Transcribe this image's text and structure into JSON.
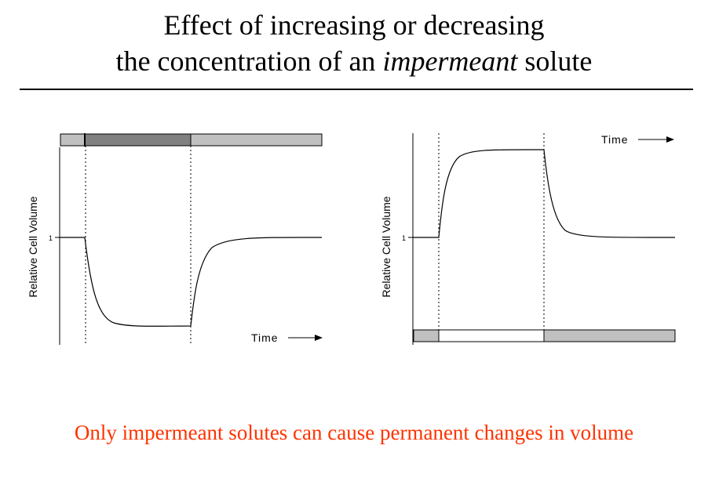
{
  "title": {
    "line1": "Effect of increasing or decreasing",
    "line2_prefix": "the concentration of an ",
    "line2_italic": "impermeant",
    "line2_suffix": " solute"
  },
  "left_plot": {
    "ylabel": "Relative Cell Volume",
    "y_tick": "1",
    "time_label": "Time",
    "bar_colors": [
      "#c0c0c0",
      "#808080",
      "#c0c0c0"
    ]
  },
  "right_plot": {
    "ylabel": "Relative Cell Volume",
    "y_tick": "1",
    "time_label": "Time",
    "bar_colors": [
      "#c0c0c0",
      "#ffffff",
      "#c0c0c0"
    ]
  },
  "footer": "Only impermeant solutes can cause permanent changes in volume",
  "colors": {
    "footer": "#ff3300",
    "line": "#000000"
  }
}
